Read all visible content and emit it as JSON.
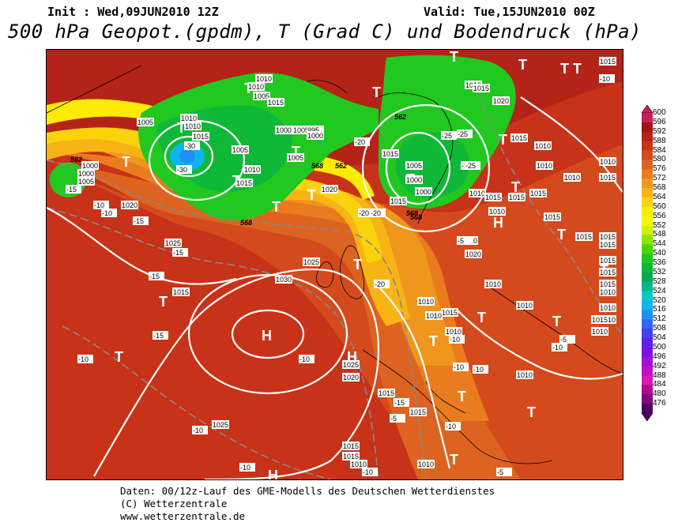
{
  "header": {
    "init": "Init : Wed,09JUN2010 12Z",
    "valid": "Valid: Tue,15JUN2010 00Z",
    "title": "500 hPa Geopot.(gpdm), T (Grad C) und Bodendruck (hPa)"
  },
  "footer": {
    "line1": "Daten: 00/12z-Lauf des GME-Modells des Deutschen Wetterdienstes",
    "line2": "(C) Wetterzentrale",
    "line3": "www.wetterzentrale.de"
  },
  "colorbar": {
    "levels": [
      "600",
      "596",
      "592",
      "588",
      "584",
      "580",
      "576",
      "572",
      "568",
      "564",
      "560",
      "556",
      "552",
      "548",
      "544",
      "540",
      "536",
      "532",
      "528",
      "524",
      "520",
      "516",
      "512",
      "508",
      "504",
      "500",
      "496",
      "492",
      "488",
      "484",
      "480",
      "476"
    ],
    "colors": [
      "#c81e5a",
      "#a01414",
      "#b42318",
      "#c83218",
      "#d44a1c",
      "#dc6420",
      "#e87c1e",
      "#f0961c",
      "#f8b414",
      "#fcd20c",
      "#fcec04",
      "#f4f800",
      "#d0f000",
      "#90e400",
      "#4cd600",
      "#20c820",
      "#10b838",
      "#08a850",
      "#06b88a",
      "#08c8c8",
      "#10b4f0",
      "#2090f8",
      "#3068f8",
      "#4040f0",
      "#6020e8",
      "#8010e0",
      "#a010d8",
      "#c010c8",
      "#d818b8",
      "#b00890",
      "#80087a",
      "#500060"
    ]
  },
  "map": {
    "pressure_labels": [
      "1010",
      "1010",
      "1005",
      "1015",
      "1010",
      "1005",
      "1000",
      "1005",
      "1010",
      "1015",
      "995",
      "1000",
      "1005",
      "1000",
      "1000",
      "1005",
      "1005",
      "1010",
      "1015",
      "1020",
      "1025",
      "1025",
      "1015",
      "1015",
      "1020",
      "1030",
      "1025",
      "1020",
      "1015",
      "1015",
      "1025",
      "1010",
      "1015",
      "1015",
      "1010",
      "1010",
      "1015",
      "1010",
      "1015",
      "1020",
      "1015",
      "1010",
      "1015",
      "1015",
      "1015",
      "1010",
      "1005",
      "1000",
      "1000",
      "1015",
      "1015",
      "1010",
      "1010",
      "1010",
      "1015",
      "1010",
      "1010",
      "1020",
      "1010",
      "1010",
      "1015",
      "1010",
      "1015",
      "1015",
      "1015",
      "1015",
      "1010",
      "1010",
      "1015",
      "1010",
      "1010",
      "1015",
      "1015",
      "1010",
      "1010"
    ],
    "temp_labels": [
      "-30",
      "-30",
      "-25",
      "-25",
      "-20",
      "-25",
      "-25",
      "-20",
      "-20",
      "-20",
      "-15",
      "-15",
      "-15",
      "-15",
      "-15",
      "-15",
      "-10",
      "-10",
      "-10",
      "-10",
      "-10",
      "-10",
      "-10",
      "-10",
      "-10",
      "-10",
      "-10",
      "-10",
      "-5",
      "-5",
      "-5",
      "-10",
      "-5"
    ],
    "geopot_labels": [
      "562",
      "562",
      "562",
      "568",
      "568",
      "568",
      "568"
    ],
    "symbols": {
      "high": "H",
      "low": "T"
    }
  }
}
